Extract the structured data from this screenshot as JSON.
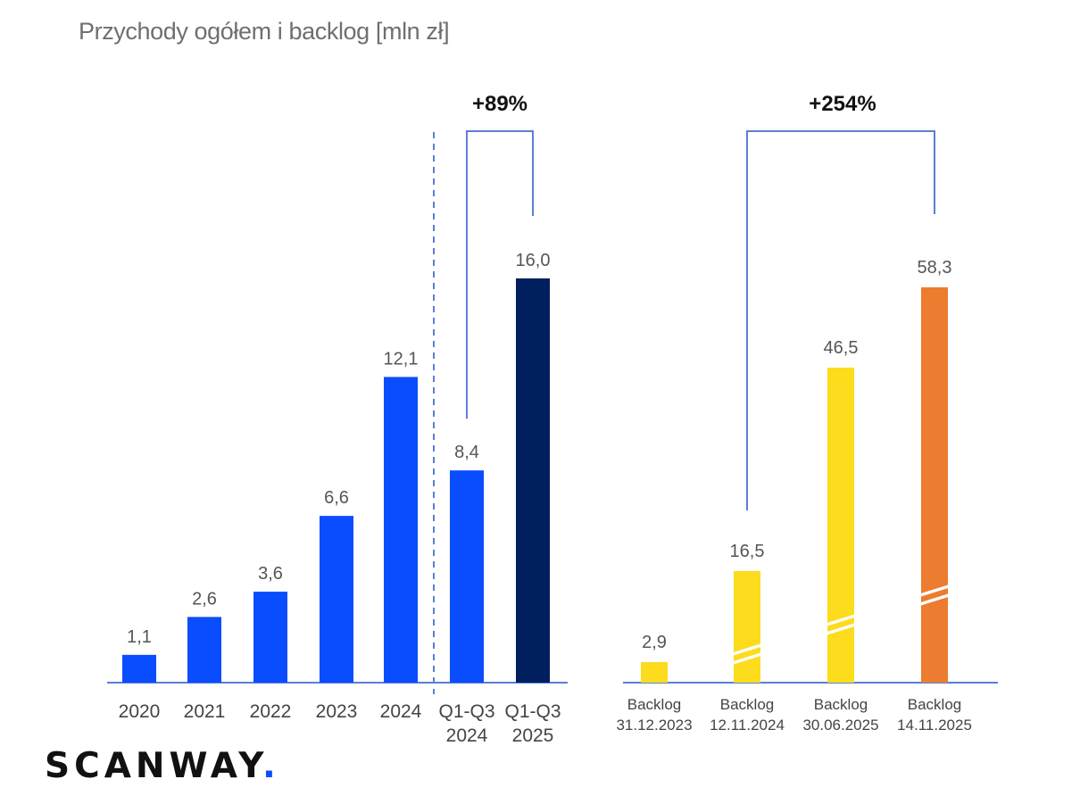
{
  "title": "Przychody ogółem i backlog [mln zł]",
  "logo": {
    "text": "SCANWAY",
    "dot": ".",
    "accent_color": "#0a4dff"
  },
  "colors": {
    "revenue_bar": "#0a4dff",
    "revenue_highlight": "#001f5c",
    "backlog_bar": "#fcdc1c",
    "backlog_highlight": "#ec7c30",
    "axis": "#5b7fd6",
    "bracket": "#5b7fd6",
    "value_text": "#555555",
    "tick_text": "#444444"
  },
  "chart_data": [
    {
      "type": "bar",
      "name": "revenue",
      "categories": [
        "2020",
        "2021",
        "2022",
        "2023",
        "2024",
        "Q1-Q3\n2024",
        "Q1-Q3\n2025"
      ],
      "values": [
        1.1,
        2.6,
        3.6,
        6.6,
        12.1,
        8.4,
        16.0
      ],
      "value_labels": [
        "1,1",
        "2,6",
        "3,6",
        "6,6",
        "12,1",
        "8,4",
        "16,0"
      ],
      "highlight_index": 6,
      "ylim": [
        0,
        16.0
      ],
      "separator_after_index": 4,
      "annotation": {
        "label": "+89%",
        "from_index": 5,
        "to_index": 6
      }
    },
    {
      "type": "bar",
      "name": "backlog",
      "categories": [
        "Backlog\n31.12.2023",
        "Backlog\n12.11.2024",
        "Backlog\n30.06.2025",
        "Backlog\n14.11.2025"
      ],
      "values": [
        2.9,
        16.5,
        46.5,
        58.3
      ],
      "value_labels": [
        "2,9",
        "16,5",
        "46,5",
        "58,3"
      ],
      "highlight_index": 3,
      "axis_break_indices": [
        1,
        2,
        3
      ],
      "annotation": {
        "label": "+254%",
        "from_index": 1,
        "to_index": 3
      }
    }
  ]
}
